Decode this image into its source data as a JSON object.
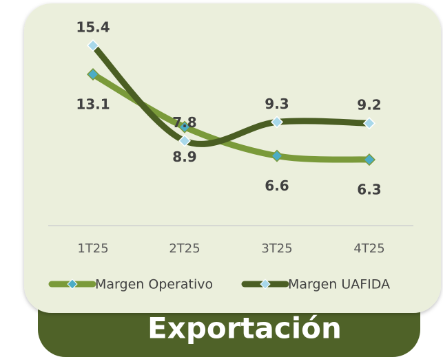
{
  "chart_data": {
    "type": "line",
    "title": "Exportación",
    "categories": [
      "1T25",
      "2T25",
      "3T25",
      "4T25"
    ],
    "series": [
      {
        "name": "Margen Operativo",
        "color": "#7a9a3a",
        "marker_color": "#4bacc6",
        "label_position": "below",
        "values": [
          13.1,
          8.9,
          6.6,
          6.3
        ]
      },
      {
        "name": "Margen UAFIDA",
        "color": "#4a5e23",
        "marker_color": "#a8d8ea",
        "label_position": "above",
        "values": [
          15.4,
          7.8,
          9.3,
          9.2
        ]
      }
    ],
    "ylim": [
      0,
      18
    ],
    "smooth": true,
    "legend": "bottom"
  }
}
